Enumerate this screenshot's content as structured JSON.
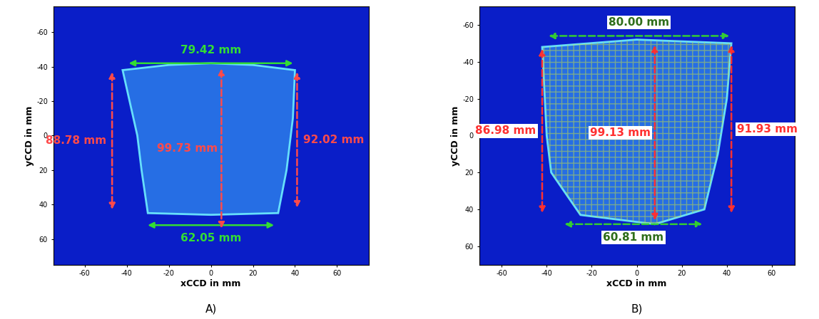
{
  "chart_data": [
    {
      "type": "image",
      "title": "A)",
      "x_label": "xCCD in mm",
      "y_label": "yCCD in mm",
      "xlim": [
        -75,
        75
      ],
      "ylim": [
        75,
        -75
      ],
      "xticks": [
        -60,
        -40,
        -20,
        0,
        20,
        40,
        60
      ],
      "yticks": [
        -60,
        -40,
        -20,
        0,
        20,
        40,
        60
      ],
      "outline": {
        "x": [
          -42,
          -20,
          0,
          20,
          40,
          39,
          36,
          32,
          0,
          -30,
          -33,
          -35
        ],
        "y": [
          -38,
          -41,
          -42,
          -41,
          -38,
          -10,
          20,
          45,
          46,
          45,
          20,
          0
        ]
      },
      "annotations": [
        {
          "text": "79.42 mm",
          "start": [
            -40,
            -42
          ],
          "end": [
            40,
            -42
          ],
          "color": "#33dd33",
          "line_style": "solid"
        },
        {
          "text": "62.05 mm",
          "start": [
            -31,
            52
          ],
          "end": [
            31,
            52
          ],
          "color": "#33dd33",
          "line_style": "solid"
        },
        {
          "text": "88.78 mm",
          "start": [
            -47,
            -38
          ],
          "end": [
            -47,
            44
          ],
          "color": "#ff4a4a",
          "line_style": "dashed"
        },
        {
          "text": "92.02 mm",
          "start": [
            41,
            -38
          ],
          "end": [
            41,
            43
          ],
          "color": "#ff4a4a",
          "line_style": "dashed"
        },
        {
          "text": "99.73 mm",
          "start": [
            5,
            -40
          ],
          "end": [
            5,
            55
          ],
          "color": "#ff4a4a",
          "line_style": "dashed"
        }
      ]
    },
    {
      "type": "image",
      "title": "B)",
      "x_label": "xCCD in mm",
      "y_label": "yCCD in mm",
      "xlim": [
        -70,
        70
      ],
      "ylim": [
        70,
        -70
      ],
      "xticks": [
        -60,
        -40,
        -20,
        0,
        20,
        40,
        60
      ],
      "yticks": [
        -60,
        -40,
        -20,
        0,
        20,
        40,
        60
      ],
      "outline": {
        "x": [
          -42,
          0,
          42,
          40,
          36,
          30,
          8,
          -25,
          -38,
          -40
        ],
        "y": [
          -48,
          -52,
          -50,
          -20,
          10,
          40,
          48,
          43,
          20,
          0
        ]
      },
      "annotations": [
        {
          "text": "80.00 mm",
          "start": [
            -40,
            -54
          ],
          "end": [
            42,
            -54
          ],
          "color": "#33cc33",
          "line_style": "dashed"
        },
        {
          "text": "60.81 mm",
          "start": [
            -33,
            48
          ],
          "end": [
            30,
            48
          ],
          "color": "#33cc33",
          "line_style": "dashed"
        },
        {
          "text": "86.98 mm",
          "start": [
            -42,
            -48
          ],
          "end": [
            -42,
            43
          ],
          "color": "#ff3030",
          "line_style": "dashed"
        },
        {
          "text": "91.93 mm",
          "start": [
            42,
            -50
          ],
          "end": [
            42,
            43
          ],
          "color": "#ff3030",
          "line_style": "dashed"
        },
        {
          "text": "99.13 mm",
          "start": [
            8,
            -50
          ],
          "end": [
            8,
            47
          ],
          "color": "#ff3030",
          "line_style": "dashed"
        }
      ]
    }
  ]
}
